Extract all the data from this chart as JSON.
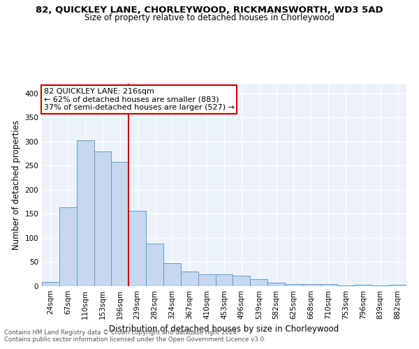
{
  "title": "82, QUICKLEY LANE, CHORLEYWOOD, RICKMANSWORTH, WD3 5AD",
  "subtitle": "Size of property relative to detached houses in Chorleywood",
  "xlabel": "Distribution of detached houses by size in Chorleywood",
  "ylabel": "Number of detached properties",
  "bar_color": "#c5d8ed",
  "bar_edge_color": "#5b9bd5",
  "categories": [
    "24sqm",
    "67sqm",
    "110sqm",
    "153sqm",
    "196sqm",
    "239sqm",
    "282sqm",
    "324sqm",
    "367sqm",
    "410sqm",
    "453sqm",
    "496sqm",
    "539sqm",
    "582sqm",
    "625sqm",
    "668sqm",
    "710sqm",
    "753sqm",
    "796sqm",
    "839sqm",
    "882sqm"
  ],
  "values": [
    9,
    163,
    302,
    280,
    258,
    157,
    88,
    48,
    30,
    25,
    24,
    22,
    14,
    7,
    5,
    5,
    4,
    2,
    3,
    2,
    3
  ],
  "vline_x": 4.5,
  "vline_color": "#cc0000",
  "annotation_line1": "82 QUICKLEY LANE: 216sqm",
  "annotation_line2": "← 62% of detached houses are smaller (883)",
  "annotation_line3": "37% of semi-detached houses are larger (527) →",
  "box_color": "#cc0000",
  "ylim": [
    0,
    420
  ],
  "yticks": [
    0,
    50,
    100,
    150,
    200,
    250,
    300,
    350,
    400
  ],
  "footer1": "Contains HM Land Registry data © Crown copyright and database right 2024.",
  "footer2": "Contains public sector information licensed under the Open Government Licence v3.0.",
  "bg_color": "#ecf2f9",
  "title_fontsize": 9.5,
  "subtitle_fontsize": 8.5,
  "tick_fontsize": 7.5,
  "ylabel_fontsize": 8.5,
  "xlabel_fontsize": 8.5,
  "annotation_fontsize": 8.0
}
